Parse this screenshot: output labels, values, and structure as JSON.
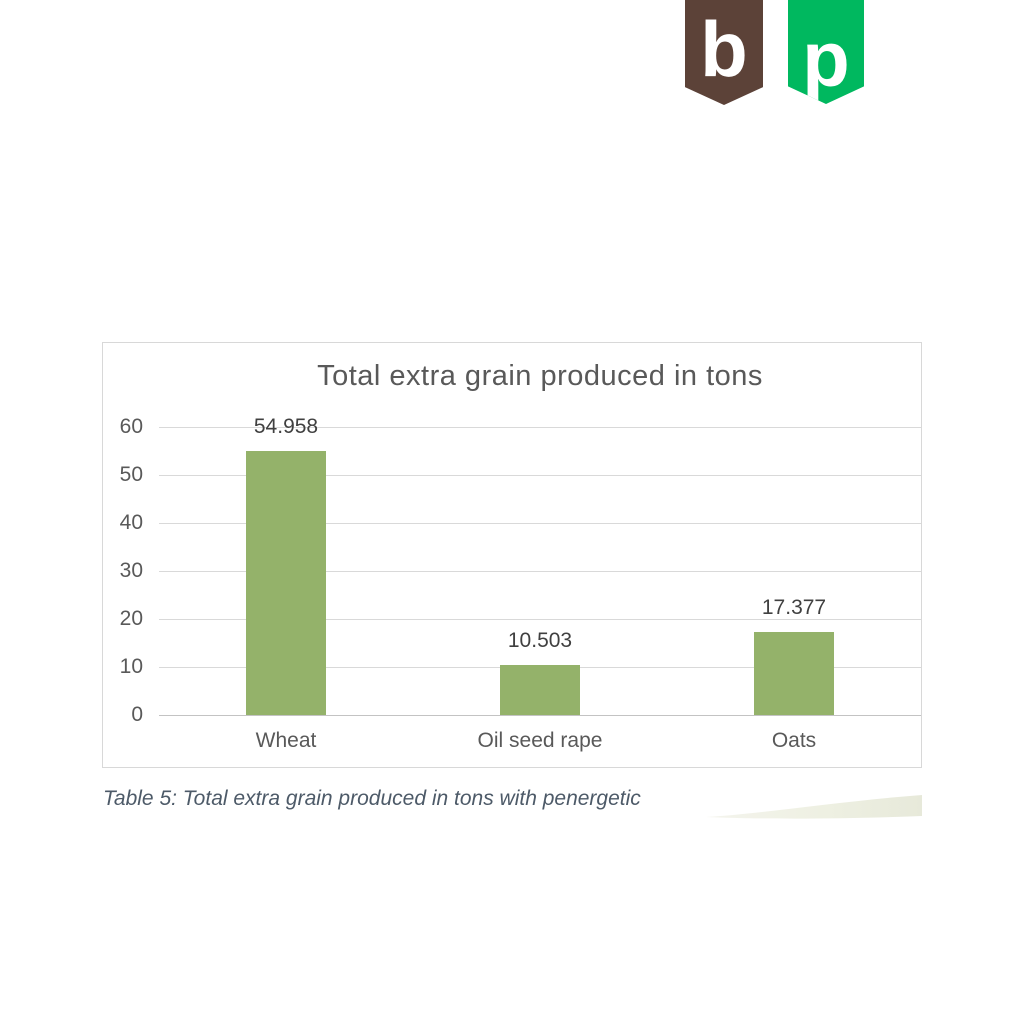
{
  "logo": {
    "badges": [
      {
        "name": "brown-b-badge",
        "letter": "b",
        "color": "#5C4238"
      },
      {
        "name": "green-p-badge",
        "letter": "p",
        "color": "#00B85F"
      }
    ]
  },
  "chart_data": {
    "type": "bar",
    "title": "Total extra grain produced in tons",
    "categories": [
      "Wheat",
      "Oil seed rape",
      "Oats"
    ],
    "values": [
      54.958,
      10.503,
      17.377
    ],
    "value_labels": [
      "54.958",
      "10.503",
      "17.377"
    ],
    "xlabel": "",
    "ylabel": "",
    "ylim": [
      0,
      60
    ],
    "yticks": [
      0,
      10,
      20,
      30,
      40,
      50,
      60
    ],
    "grid": true,
    "legend": "none",
    "bar_color": "#94B26A",
    "grid_color": "#d9d9d9",
    "title_color": "#595959",
    "axis_text_color": "#595959",
    "data_label_color": "#404040"
  },
  "caption": "Table 5: Total extra grain produced in tons with penergetic"
}
